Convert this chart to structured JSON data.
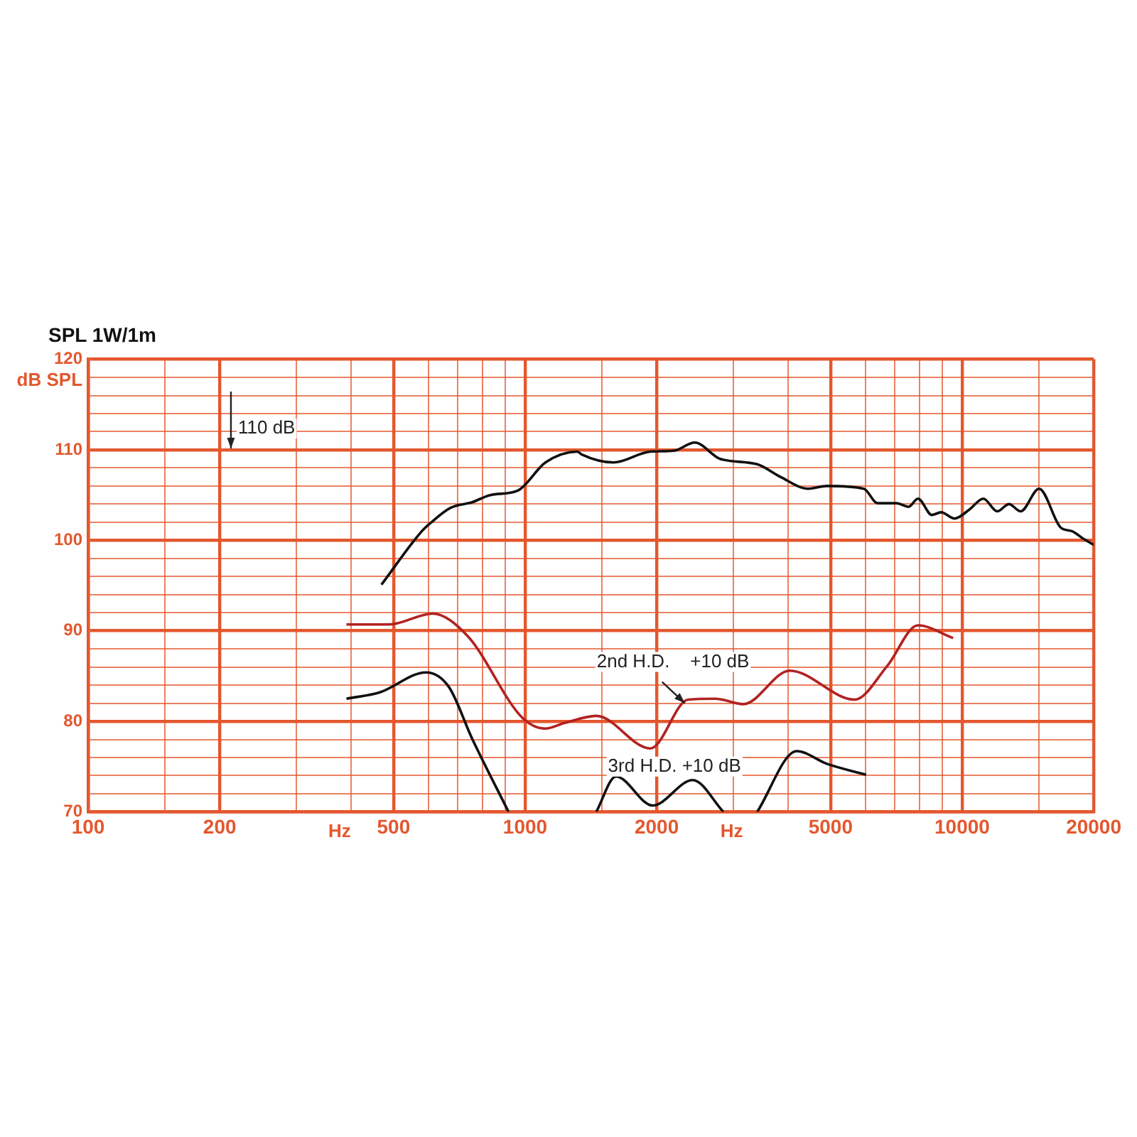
{
  "chart_data": {
    "type": "line",
    "title": "SPL 1W/1m",
    "xlabel": "Hz",
    "ylabel": "dB SPL",
    "xlim": [
      100,
      20000
    ],
    "ylim": [
      70,
      120
    ],
    "log": "x",
    "grid": true,
    "legend": false,
    "marker": "none",
    "line_style": "solid",
    "xticks": [
      100,
      {
        "value": 150,
        "label": null
      },
      200,
      {
        "value": 300,
        "label": null
      },
      {
        "value": 400,
        "label": null
      },
      500,
      {
        "value": 600,
        "label": null
      },
      {
        "value": 700,
        "label": null
      },
      {
        "value": 800,
        "label": null
      },
      {
        "value": 900,
        "label": null
      },
      1000,
      {
        "value": 1500,
        "label": null
      },
      2000,
      {
        "value": 3000,
        "label": null
      },
      {
        "value": 4000,
        "label": null
      },
      5000,
      {
        "value": 6000,
        "label": null
      },
      {
        "value": 7000,
        "label": null
      },
      {
        "value": 8000,
        "label": null
      },
      {
        "value": 9000,
        "label": null
      },
      10000,
      {
        "value": 15000,
        "label": null
      },
      20000
    ],
    "yticks": [
      70,
      {
        "value": 72,
        "label": null
      },
      {
        "value": 74,
        "label": null
      },
      {
        "value": 76,
        "label": null
      },
      {
        "value": 78,
        "label": null
      },
      80,
      {
        "value": 82,
        "label": null
      },
      {
        "value": 84,
        "label": null
      },
      {
        "value": 86,
        "label": null
      },
      {
        "value": 88,
        "label": null
      },
      90,
      {
        "value": 92,
        "label": null
      },
      {
        "value": 94,
        "label": null
      },
      {
        "value": 96,
        "label": null
      },
      {
        "value": 98,
        "label": null
      },
      100,
      {
        "value": 102,
        "label": null
      },
      {
        "value": 104,
        "label": null
      },
      {
        "value": 106,
        "label": null
      },
      {
        "value": 108,
        "label": null
      },
      110,
      {
        "value": 112,
        "label": null
      },
      {
        "value": 114,
        "label": null
      },
      {
        "value": 116,
        "label": null
      },
      {
        "value": 118,
        "label": null
      },
      120
    ],
    "annotations": [
      "110 dB",
      {
        "text": "2nd H.D.    +10 dB",
        "x": 2320,
        "y": 82
      },
      "3rd H.D. +10 dB"
    ],
    "series": [
      {
        "color": "#111111",
        "x": [
          469,
          580,
          607,
          676,
          756,
          832,
          962,
          1113,
          1317,
          1345,
          1593,
          1934,
          2190,
          2444,
          2793,
          3397,
          3839,
          4444,
          4904,
          5956,
          6405,
          7073,
          7542,
          7924,
          8527,
          8950,
          9604,
          10392,
          11180,
          12030,
          12800,
          13610,
          15000,
          16820,
          17860,
          18900,
          20000
        ],
        "values": [
          95.1,
          101.0,
          101.9,
          103.6,
          104.2,
          105.0,
          105.5,
          108.6,
          109.8,
          109.5,
          108.6,
          109.8,
          109.9,
          110.8,
          109.0,
          108.4,
          107.0,
          105.7,
          106.0,
          105.7,
          104.1,
          104.1,
          103.7,
          104.6,
          102.8,
          103.1,
          102.4,
          103.4,
          104.6,
          103.2,
          104.0,
          103.2,
          105.7,
          101.4,
          101.0,
          100.2,
          99.5
        ]
      },
      {
        "color": "#b22222",
        "x": [
          390,
          488,
          614,
          739,
          985,
          1113,
          1228,
          1455,
          1934,
          2360,
          2727,
          3157,
          4032,
          5674,
          6735,
          7924,
          9535
        ],
        "values": [
          90.7,
          90.7,
          91.9,
          89.4,
          80.4,
          79.2,
          79.8,
          80.6,
          77.0,
          82.4,
          82.5,
          81.9,
          85.6,
          82.4,
          86.1,
          90.6,
          89.2
        ]
      },
      {
        "color": "#111111",
        "x": [
          390,
          465,
          593,
          669,
          756,
          916,
          1200,
          1455,
          1614,
          1958,
          2418,
          2842,
          3100,
          3397,
          4184,
          4904,
          6028
        ],
        "values": [
          82.5,
          83.2,
          85.4,
          83.8,
          78.1,
          70,
          null,
          70,
          73.9,
          70.7,
          73.5,
          70,
          null,
          70,
          76.7,
          75.3,
          74.1
        ]
      }
    ]
  }
}
